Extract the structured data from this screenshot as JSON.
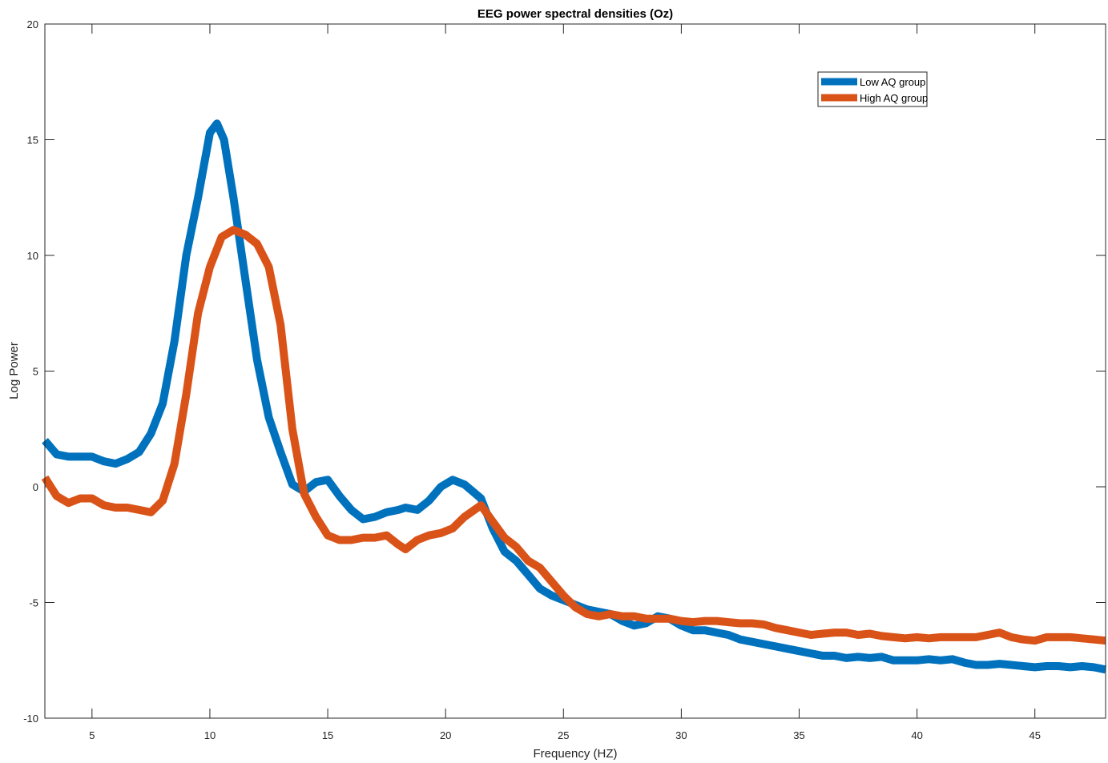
{
  "chart_data": {
    "type": "line",
    "title": "EEG power spectral densities (Oz)",
    "xlabel": "Frequency (HZ)",
    "ylabel": "Log Power",
    "xlim": [
      3,
      48
    ],
    "ylim": [
      -10,
      20
    ],
    "xticks": [
      5,
      10,
      15,
      20,
      25,
      30,
      35,
      40,
      45
    ],
    "yticks": [
      -10,
      -5,
      0,
      5,
      10,
      15,
      20
    ],
    "grid": false,
    "legend": {
      "position": "top-right"
    },
    "series": [
      {
        "name": "Low AQ group",
        "color": "#0072BD",
        "points": [
          [
            3,
            2.0
          ],
          [
            3.5,
            1.4
          ],
          [
            4,
            1.3
          ],
          [
            4.5,
            1.3
          ],
          [
            5,
            1.3
          ],
          [
            5.5,
            1.1
          ],
          [
            6,
            1.0
          ],
          [
            6.5,
            1.2
          ],
          [
            7,
            1.5
          ],
          [
            7.5,
            2.3
          ],
          [
            8,
            3.6
          ],
          [
            8.5,
            6.3
          ],
          [
            9,
            10.0
          ],
          [
            9.5,
            12.5
          ],
          [
            10,
            15.3
          ],
          [
            10.3,
            15.7
          ],
          [
            10.6,
            15.0
          ],
          [
            11,
            12.5
          ],
          [
            11.5,
            9.0
          ],
          [
            12,
            5.5
          ],
          [
            12.5,
            3.0
          ],
          [
            13,
            1.5
          ],
          [
            13.5,
            0.1
          ],
          [
            14,
            -0.2
          ],
          [
            14.5,
            0.2
          ],
          [
            15,
            0.3
          ],
          [
            15.5,
            -0.4
          ],
          [
            16,
            -1.0
          ],
          [
            16.5,
            -1.4
          ],
          [
            17,
            -1.3
          ],
          [
            17.5,
            -1.1
          ],
          [
            18,
            -1.0
          ],
          [
            18.3,
            -0.9
          ],
          [
            18.8,
            -1.0
          ],
          [
            19.3,
            -0.6
          ],
          [
            19.8,
            0.0
          ],
          [
            20.3,
            0.3
          ],
          [
            20.8,
            0.1
          ],
          [
            21.5,
            -0.5
          ],
          [
            22,
            -1.8
          ],
          [
            22.5,
            -2.8
          ],
          [
            23,
            -3.2
          ],
          [
            23.5,
            -3.8
          ],
          [
            24,
            -4.4
          ],
          [
            24.5,
            -4.7
          ],
          [
            25,
            -4.9
          ],
          [
            25.5,
            -5.1
          ],
          [
            26,
            -5.3
          ],
          [
            26.5,
            -5.4
          ],
          [
            27,
            -5.5
          ],
          [
            27.5,
            -5.8
          ],
          [
            28,
            -6.0
          ],
          [
            28.5,
            -5.9
          ],
          [
            29,
            -5.6
          ],
          [
            29.5,
            -5.7
          ],
          [
            30,
            -6.0
          ],
          [
            30.5,
            -6.2
          ],
          [
            31,
            -6.2
          ],
          [
            31.5,
            -6.3
          ],
          [
            32,
            -6.4
          ],
          [
            32.5,
            -6.6
          ],
          [
            33,
            -6.7
          ],
          [
            33.5,
            -6.8
          ],
          [
            34,
            -6.9
          ],
          [
            34.5,
            -7.0
          ],
          [
            35,
            -7.1
          ],
          [
            35.5,
            -7.2
          ],
          [
            36,
            -7.3
          ],
          [
            36.5,
            -7.3
          ],
          [
            37,
            -7.4
          ],
          [
            37.5,
            -7.35
          ],
          [
            38,
            -7.4
          ],
          [
            38.5,
            -7.35
          ],
          [
            39,
            -7.5
          ],
          [
            39.5,
            -7.5
          ],
          [
            40,
            -7.5
          ],
          [
            40.5,
            -7.45
          ],
          [
            41,
            -7.5
          ],
          [
            41.5,
            -7.45
          ],
          [
            42,
            -7.6
          ],
          [
            42.5,
            -7.7
          ],
          [
            43,
            -7.7
          ],
          [
            43.5,
            -7.65
          ],
          [
            44,
            -7.7
          ],
          [
            44.5,
            -7.75
          ],
          [
            45,
            -7.8
          ],
          [
            45.5,
            -7.75
          ],
          [
            46,
            -7.75
          ],
          [
            46.5,
            -7.8
          ],
          [
            47,
            -7.75
          ],
          [
            47.5,
            -7.8
          ],
          [
            48,
            -7.9
          ]
        ]
      },
      {
        "name": "High AQ group",
        "color": "#D95319",
        "points": [
          [
            3,
            0.4
          ],
          [
            3.5,
            -0.4
          ],
          [
            4,
            -0.7
          ],
          [
            4.5,
            -0.5
          ],
          [
            5,
            -0.5
          ],
          [
            5.5,
            -0.8
          ],
          [
            6,
            -0.9
          ],
          [
            6.5,
            -0.9
          ],
          [
            7,
            -1.0
          ],
          [
            7.5,
            -1.1
          ],
          [
            8,
            -0.6
          ],
          [
            8.5,
            1.0
          ],
          [
            9,
            4.0
          ],
          [
            9.5,
            7.5
          ],
          [
            10,
            9.5
          ],
          [
            10.5,
            10.8
          ],
          [
            11,
            11.1
          ],
          [
            11.5,
            10.9
          ],
          [
            12,
            10.5
          ],
          [
            12.5,
            9.5
          ],
          [
            13,
            7.0
          ],
          [
            13.5,
            2.5
          ],
          [
            14,
            -0.3
          ],
          [
            14.5,
            -1.3
          ],
          [
            15,
            -2.1
          ],
          [
            15.5,
            -2.3
          ],
          [
            16,
            -2.3
          ],
          [
            16.5,
            -2.2
          ],
          [
            17,
            -2.2
          ],
          [
            17.5,
            -2.1
          ],
          [
            18,
            -2.5
          ],
          [
            18.3,
            -2.7
          ],
          [
            18.8,
            -2.3
          ],
          [
            19.3,
            -2.1
          ],
          [
            19.8,
            -2.0
          ],
          [
            20.3,
            -1.8
          ],
          [
            20.8,
            -1.3
          ],
          [
            21.5,
            -0.8
          ],
          [
            22,
            -1.5
          ],
          [
            22.5,
            -2.2
          ],
          [
            23,
            -2.6
          ],
          [
            23.5,
            -3.2
          ],
          [
            24,
            -3.5
          ],
          [
            24.5,
            -4.1
          ],
          [
            25,
            -4.7
          ],
          [
            25.5,
            -5.2
          ],
          [
            26,
            -5.5
          ],
          [
            26.5,
            -5.6
          ],
          [
            27,
            -5.5
          ],
          [
            27.5,
            -5.6
          ],
          [
            28,
            -5.6
          ],
          [
            28.5,
            -5.7
          ],
          [
            29,
            -5.7
          ],
          [
            29.5,
            -5.7
          ],
          [
            30,
            -5.8
          ],
          [
            30.5,
            -5.85
          ],
          [
            31,
            -5.8
          ],
          [
            31.5,
            -5.8
          ],
          [
            32,
            -5.85
          ],
          [
            32.5,
            -5.9
          ],
          [
            33,
            -5.9
          ],
          [
            33.5,
            -5.95
          ],
          [
            34,
            -6.1
          ],
          [
            34.5,
            -6.2
          ],
          [
            35,
            -6.3
          ],
          [
            35.5,
            -6.4
          ],
          [
            36,
            -6.35
          ],
          [
            36.5,
            -6.3
          ],
          [
            37,
            -6.3
          ],
          [
            37.5,
            -6.4
          ],
          [
            38,
            -6.35
          ],
          [
            38.5,
            -6.45
          ],
          [
            39,
            -6.5
          ],
          [
            39.5,
            -6.55
          ],
          [
            40,
            -6.5
          ],
          [
            40.5,
            -6.55
          ],
          [
            41,
            -6.5
          ],
          [
            41.5,
            -6.5
          ],
          [
            42,
            -6.5
          ],
          [
            42.5,
            -6.5
          ],
          [
            43,
            -6.4
          ],
          [
            43.5,
            -6.3
          ],
          [
            44,
            -6.5
          ],
          [
            44.5,
            -6.6
          ],
          [
            45,
            -6.65
          ],
          [
            45.5,
            -6.5
          ],
          [
            46,
            -6.5
          ],
          [
            46.5,
            -6.5
          ],
          [
            47,
            -6.55
          ],
          [
            47.5,
            -6.6
          ],
          [
            48,
            -6.65
          ]
        ]
      }
    ]
  }
}
